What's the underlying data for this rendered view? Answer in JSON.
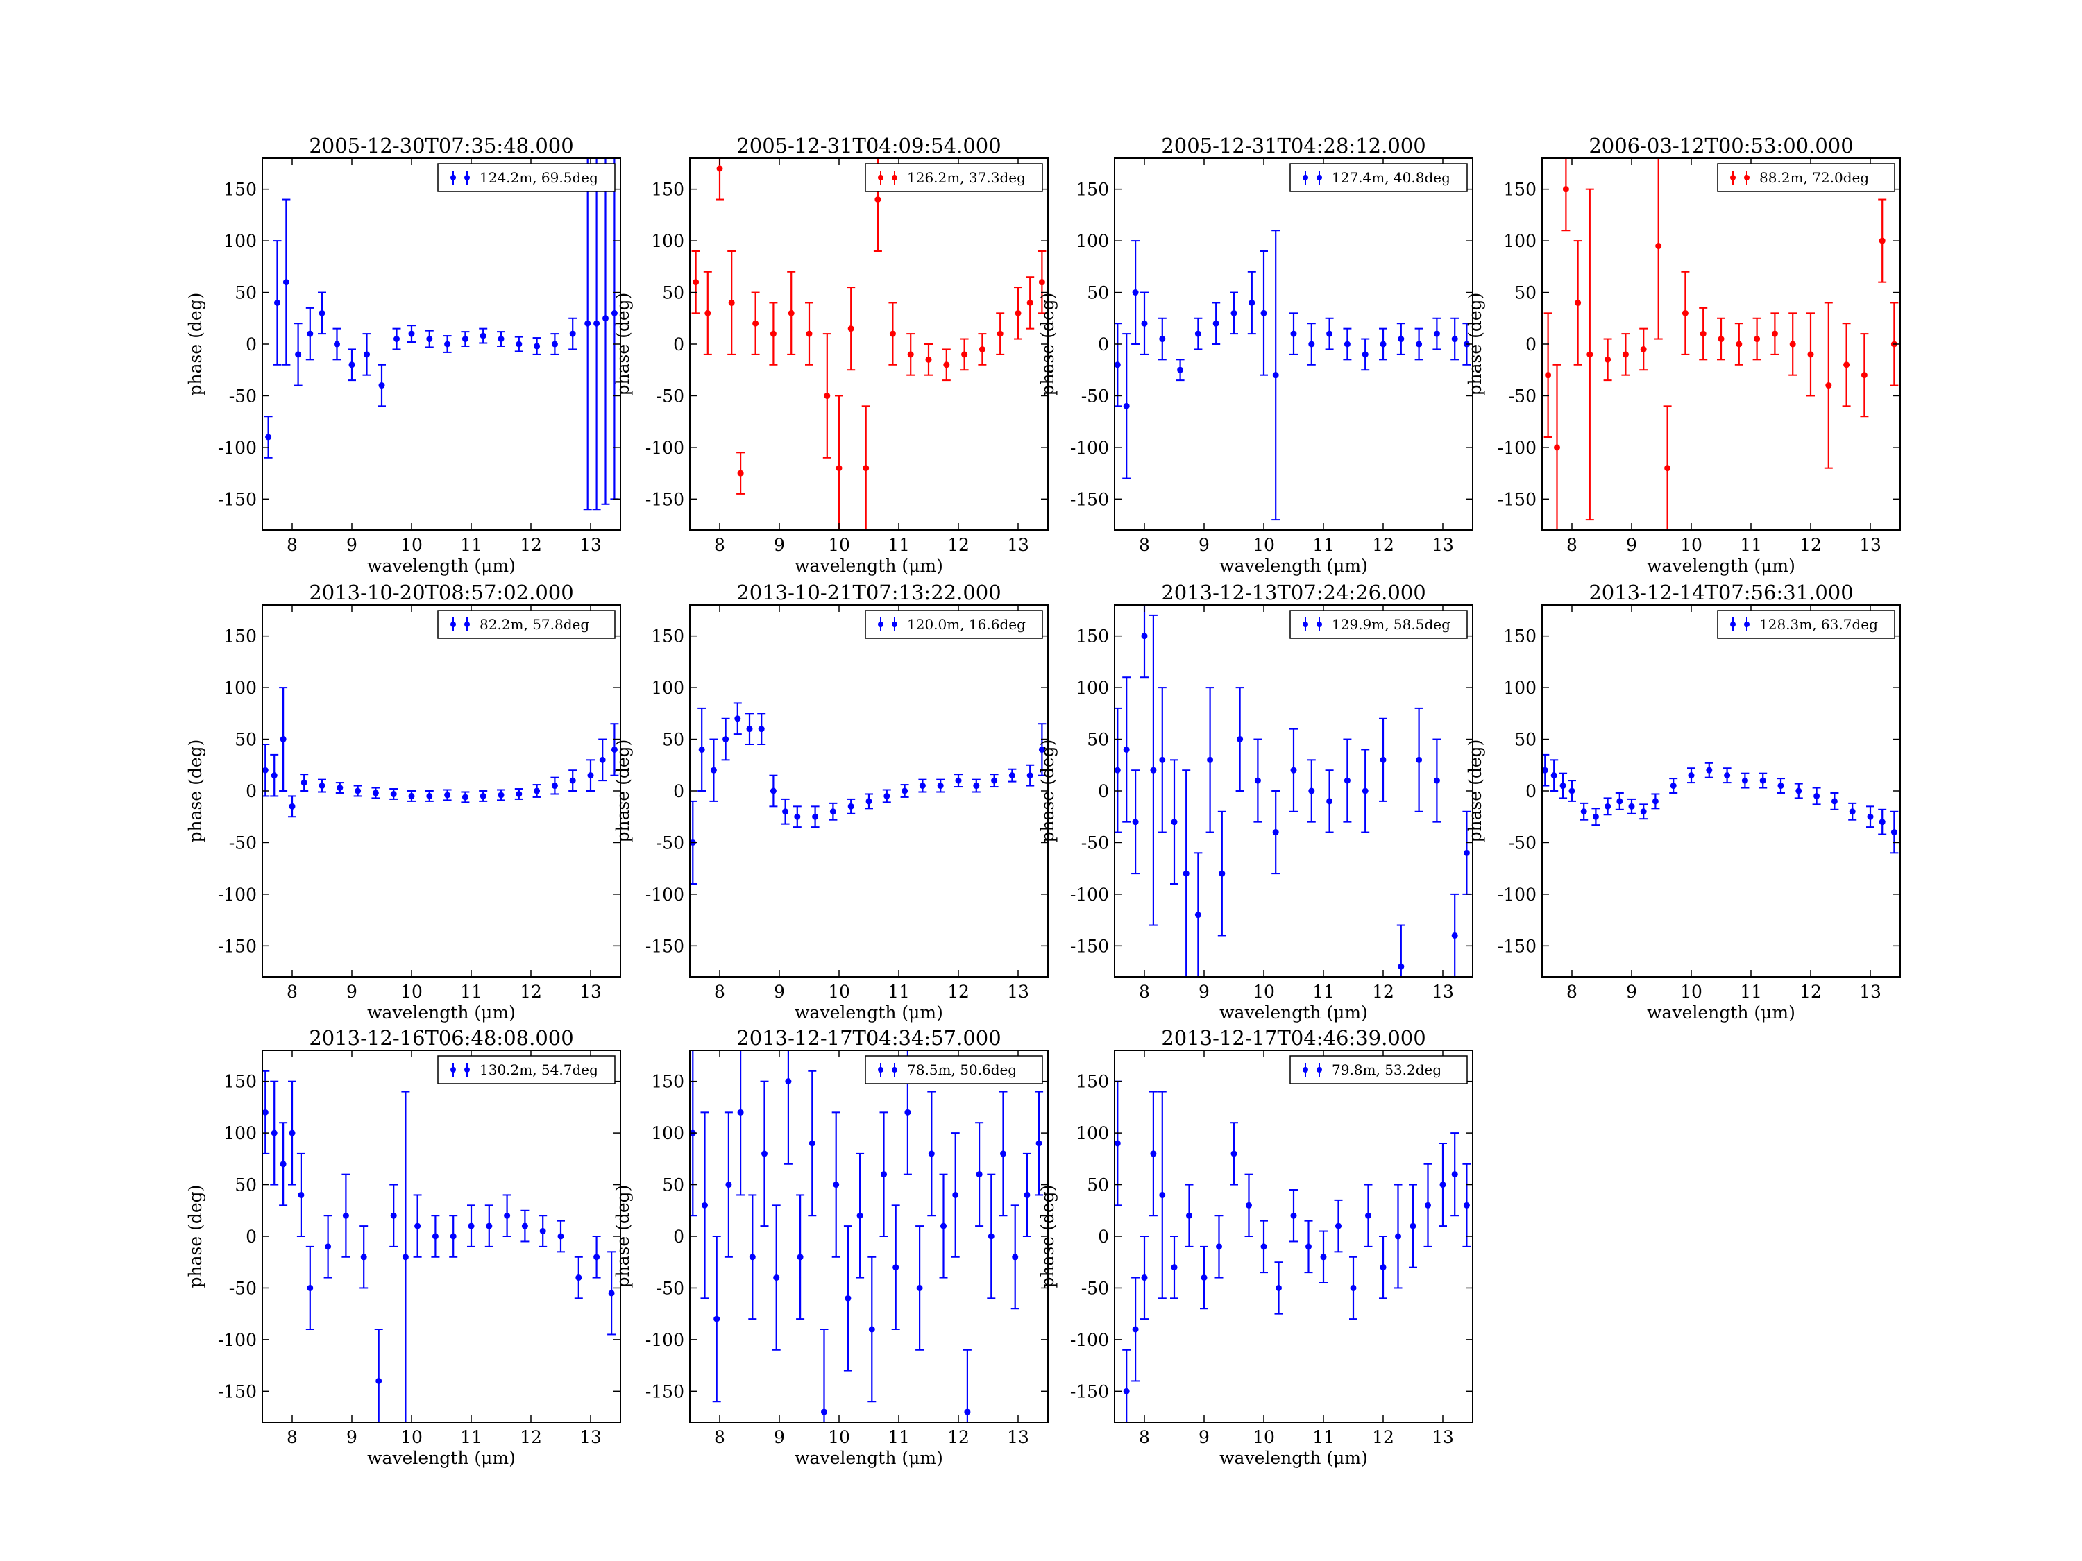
{
  "figure": {
    "xlabel": "wavelength (μm)",
    "ylabel": "phase (deg)",
    "xlim": [
      7.5,
      13.5
    ],
    "ylim": [
      -180,
      180
    ],
    "xticks": [
      8,
      9,
      10,
      11,
      12,
      13
    ],
    "yticks": [
      -150,
      -100,
      -50,
      0,
      50,
      100,
      150
    ],
    "colors": {
      "blue": "#0000ff",
      "red": "#ff0000"
    }
  },
  "chart_data": [
    {
      "type": "scatter",
      "title": "2005-12-30T07:35:48.000",
      "color": "blue",
      "series": [
        {
          "name": "124.2m, 69.5deg",
          "x": [
            7.6,
            7.75,
            7.9,
            8.1,
            8.3,
            8.5,
            8.75,
            9.0,
            9.25,
            9.5,
            9.75,
            10.0,
            10.3,
            10.6,
            10.9,
            11.2,
            11.5,
            11.8,
            12.1,
            12.4,
            12.7,
            12.95,
            13.1,
            13.25,
            13.4
          ],
          "y": [
            -90,
            40,
            60,
            -10,
            10,
            30,
            0,
            -20,
            -10,
            -40,
            5,
            10,
            5,
            0,
            5,
            8,
            5,
            0,
            -2,
            0,
            10,
            20,
            20,
            25,
            30
          ],
          "err": [
            20,
            60,
            80,
            30,
            25,
            20,
            15,
            15,
            20,
            20,
            10,
            8,
            8,
            8,
            7,
            7,
            7,
            7,
            8,
            10,
            15,
            180,
            180,
            180,
            180
          ]
        }
      ]
    },
    {
      "type": "scatter",
      "title": "2005-12-31T04:09:54.000",
      "color": "red",
      "series": [
        {
          "name": "126.2m, 37.3deg",
          "x": [
            7.6,
            7.8,
            8.0,
            8.2,
            8.35,
            8.6,
            8.9,
            9.2,
            9.5,
            9.8,
            10.0,
            10.2,
            10.45,
            10.65,
            10.9,
            11.2,
            11.5,
            11.8,
            12.1,
            12.4,
            12.7,
            13.0,
            13.2,
            13.4
          ],
          "y": [
            60,
            30,
            170,
            40,
            -125,
            20,
            10,
            30,
            10,
            -50,
            -120,
            15,
            -120,
            140,
            10,
            -10,
            -15,
            -20,
            -10,
            -5,
            10,
            30,
            40,
            60
          ],
          "err": [
            30,
            40,
            30,
            50,
            20,
            30,
            30,
            40,
            30,
            60,
            70,
            40,
            60,
            50,
            30,
            20,
            15,
            15,
            15,
            15,
            20,
            25,
            25,
            30
          ]
        }
      ]
    },
    {
      "type": "scatter",
      "title": "2005-12-31T04:28:12.000",
      "color": "blue",
      "series": [
        {
          "name": "127.4m, 40.8deg",
          "x": [
            7.55,
            7.7,
            7.85,
            8.0,
            8.3,
            8.6,
            8.9,
            9.2,
            9.5,
            9.8,
            10.0,
            10.2,
            10.5,
            10.8,
            11.1,
            11.4,
            11.7,
            12.0,
            12.3,
            12.6,
            12.9,
            13.2,
            13.4
          ],
          "y": [
            -20,
            -60,
            50,
            20,
            5,
            -25,
            10,
            20,
            30,
            40,
            30,
            -30,
            10,
            0,
            10,
            0,
            -10,
            0,
            5,
            0,
            10,
            5,
            0
          ],
          "err": [
            40,
            70,
            50,
            30,
            20,
            10,
            15,
            20,
            20,
            30,
            60,
            140,
            20,
            20,
            15,
            15,
            15,
            15,
            15,
            15,
            15,
            20,
            20
          ]
        }
      ]
    },
    {
      "type": "scatter",
      "title": "2006-03-12T00:53:00.000",
      "color": "red",
      "series": [
        {
          "name": "88.2m, 72.0deg",
          "x": [
            7.6,
            7.75,
            7.9,
            8.1,
            8.3,
            8.6,
            8.9,
            9.2,
            9.45,
            9.6,
            9.9,
            10.2,
            10.5,
            10.8,
            11.1,
            11.4,
            11.7,
            12.0,
            12.3,
            12.6,
            12.9,
            13.2,
            13.4
          ],
          "y": [
            -30,
            -100,
            150,
            40,
            -10,
            -15,
            -10,
            -5,
            95,
            -120,
            30,
            10,
            5,
            0,
            5,
            10,
            0,
            -10,
            -40,
            -20,
            -30,
            100,
            0
          ],
          "err": [
            60,
            80,
            40,
            60,
            160,
            20,
            20,
            20,
            90,
            60,
            40,
            25,
            20,
            20,
            20,
            20,
            30,
            40,
            80,
            40,
            40,
            40,
            40
          ]
        }
      ]
    },
    {
      "type": "scatter",
      "title": "2013-10-20T08:57:02.000",
      "color": "blue",
      "series": [
        {
          "name": "82.2m, 57.8deg",
          "x": [
            7.55,
            7.7,
            7.85,
            8.0,
            8.2,
            8.5,
            8.8,
            9.1,
            9.4,
            9.7,
            10.0,
            10.3,
            10.6,
            10.9,
            11.2,
            11.5,
            11.8,
            12.1,
            12.4,
            12.7,
            13.0,
            13.2,
            13.4
          ],
          "y": [
            20,
            15,
            50,
            -15,
            8,
            5,
            3,
            0,
            -2,
            -3,
            -5,
            -5,
            -4,
            -6,
            -5,
            -4,
            -3,
            0,
            5,
            10,
            15,
            30,
            40
          ],
          "err": [
            25,
            20,
            50,
            10,
            8,
            6,
            5,
            5,
            5,
            5,
            5,
            5,
            5,
            5,
            5,
            5,
            5,
            6,
            8,
            10,
            15,
            20,
            25
          ]
        }
      ]
    },
    {
      "type": "scatter",
      "title": "2013-10-21T07:13:22.000",
      "color": "blue",
      "series": [
        {
          "name": "120.0m, 16.6deg",
          "x": [
            7.55,
            7.7,
            7.9,
            8.1,
            8.3,
            8.5,
            8.7,
            8.9,
            9.1,
            9.3,
            9.6,
            9.9,
            10.2,
            10.5,
            10.8,
            11.1,
            11.4,
            11.7,
            12.0,
            12.3,
            12.6,
            12.9,
            13.2,
            13.4
          ],
          "y": [
            -50,
            40,
            20,
            50,
            70,
            60,
            60,
            0,
            -20,
            -25,
            -25,
            -20,
            -15,
            -10,
            -5,
            0,
            5,
            5,
            10,
            5,
            10,
            15,
            15,
            40
          ],
          "err": [
            40,
            40,
            30,
            20,
            15,
            15,
            15,
            15,
            12,
            10,
            10,
            8,
            7,
            7,
            6,
            6,
            6,
            6,
            6,
            6,
            6,
            6,
            10,
            25
          ]
        }
      ]
    },
    {
      "type": "scatter",
      "title": "2013-12-13T07:24:26.000",
      "color": "blue",
      "series": [
        {
          "name": "129.9m, 58.5deg",
          "x": [
            7.55,
            7.7,
            7.85,
            8.0,
            8.15,
            8.3,
            8.5,
            8.7,
            8.9,
            9.1,
            9.3,
            9.6,
            9.9,
            10.2,
            10.5,
            10.8,
            11.1,
            11.4,
            11.7,
            12.0,
            12.3,
            12.6,
            12.9,
            13.2,
            13.4
          ],
          "y": [
            20,
            40,
            -30,
            150,
            20,
            30,
            -30,
            -80,
            -120,
            30,
            -80,
            50,
            10,
            -40,
            20,
            0,
            -10,
            10,
            0,
            30,
            -170,
            30,
            10,
            -140,
            -60
          ],
          "err": [
            60,
            70,
            50,
            40,
            150,
            70,
            60,
            100,
            60,
            70,
            60,
            50,
            40,
            40,
            40,
            30,
            30,
            40,
            40,
            40,
            40,
            50,
            40,
            40,
            40
          ]
        }
      ]
    },
    {
      "type": "scatter",
      "title": "2013-12-14T07:56:31.000",
      "color": "blue",
      "series": [
        {
          "name": "128.3m, 63.7deg",
          "x": [
            7.55,
            7.7,
            7.85,
            8.0,
            8.2,
            8.4,
            8.6,
            8.8,
            9.0,
            9.2,
            9.4,
            9.7,
            10.0,
            10.3,
            10.6,
            10.9,
            11.2,
            11.5,
            11.8,
            12.1,
            12.4,
            12.7,
            13.0,
            13.2,
            13.4
          ],
          "y": [
            20,
            15,
            5,
            0,
            -20,
            -25,
            -15,
            -10,
            -15,
            -20,
            -10,
            5,
            15,
            20,
            15,
            10,
            10,
            5,
            0,
            -5,
            -10,
            -20,
            -25,
            -30,
            -40
          ],
          "err": [
            15,
            15,
            12,
            10,
            8,
            8,
            8,
            8,
            7,
            7,
            7,
            7,
            7,
            7,
            7,
            7,
            7,
            7,
            7,
            8,
            8,
            8,
            10,
            12,
            20
          ]
        }
      ]
    },
    {
      "type": "scatter",
      "title": "2013-12-16T06:48:08.000",
      "color": "blue",
      "series": [
        {
          "name": "130.2m, 54.7deg",
          "x": [
            7.55,
            7.7,
            7.85,
            8.0,
            8.15,
            8.3,
            8.6,
            8.9,
            9.2,
            9.45,
            9.7,
            9.9,
            10.1,
            10.4,
            10.7,
            11.0,
            11.3,
            11.6,
            11.9,
            12.2,
            12.5,
            12.8,
            13.1,
            13.35
          ],
          "y": [
            120,
            100,
            70,
            100,
            40,
            -50,
            -10,
            20,
            -20,
            -140,
            20,
            -20,
            10,
            0,
            0,
            10,
            10,
            20,
            10,
            5,
            0,
            -40,
            -20,
            -55
          ],
          "err": [
            40,
            50,
            40,
            50,
            40,
            40,
            30,
            40,
            30,
            50,
            30,
            160,
            30,
            20,
            20,
            20,
            20,
            20,
            15,
            15,
            15,
            20,
            20,
            40
          ]
        }
      ]
    },
    {
      "type": "scatter",
      "title": "2013-12-17T04:34:57.000",
      "color": "blue",
      "series": [
        {
          "name": "78.5m, 50.6deg",
          "x": [
            7.55,
            7.75,
            7.95,
            8.15,
            8.35,
            8.55,
            8.75,
            8.95,
            9.15,
            9.35,
            9.55,
            9.75,
            9.95,
            10.15,
            10.35,
            10.55,
            10.75,
            10.95,
            11.15,
            11.35,
            11.55,
            11.75,
            11.95,
            12.15,
            12.35,
            12.55,
            12.75,
            12.95,
            13.15,
            13.35
          ],
          "y": [
            100,
            30,
            -80,
            50,
            120,
            -20,
            80,
            -40,
            150,
            -20,
            90,
            -170,
            50,
            -60,
            20,
            -90,
            60,
            -30,
            120,
            -50,
            80,
            10,
            40,
            -170,
            60,
            0,
            80,
            -20,
            40,
            90
          ],
          "err": [
            80,
            90,
            80,
            70,
            80,
            60,
            70,
            70,
            80,
            60,
            70,
            80,
            70,
            70,
            60,
            70,
            60,
            60,
            60,
            60,
            60,
            50,
            60,
            60,
            50,
            60,
            60,
            50,
            40,
            50
          ]
        }
      ]
    },
    {
      "type": "scatter",
      "title": "2013-12-17T04:46:39.000",
      "color": "blue",
      "series": [
        {
          "name": "79.8m, 53.2deg",
          "x": [
            7.55,
            7.7,
            7.85,
            8.0,
            8.15,
            8.3,
            8.5,
            8.75,
            9.0,
            9.25,
            9.5,
            9.75,
            10.0,
            10.25,
            10.5,
            10.75,
            11.0,
            11.25,
            11.5,
            11.75,
            12.0,
            12.25,
            12.5,
            12.75,
            13.0,
            13.2,
            13.4
          ],
          "y": [
            90,
            -150,
            -90,
            -40,
            80,
            40,
            -30,
            20,
            -40,
            -10,
            80,
            30,
            -10,
            -50,
            20,
            -10,
            -20,
            10,
            -50,
            20,
            -30,
            0,
            10,
            30,
            50,
            60,
            30
          ],
          "err": [
            60,
            40,
            50,
            40,
            60,
            100,
            30,
            30,
            30,
            30,
            30,
            30,
            25,
            25,
            25,
            25,
            25,
            25,
            30,
            30,
            30,
            50,
            40,
            40,
            40,
            40,
            40
          ]
        }
      ]
    }
  ]
}
